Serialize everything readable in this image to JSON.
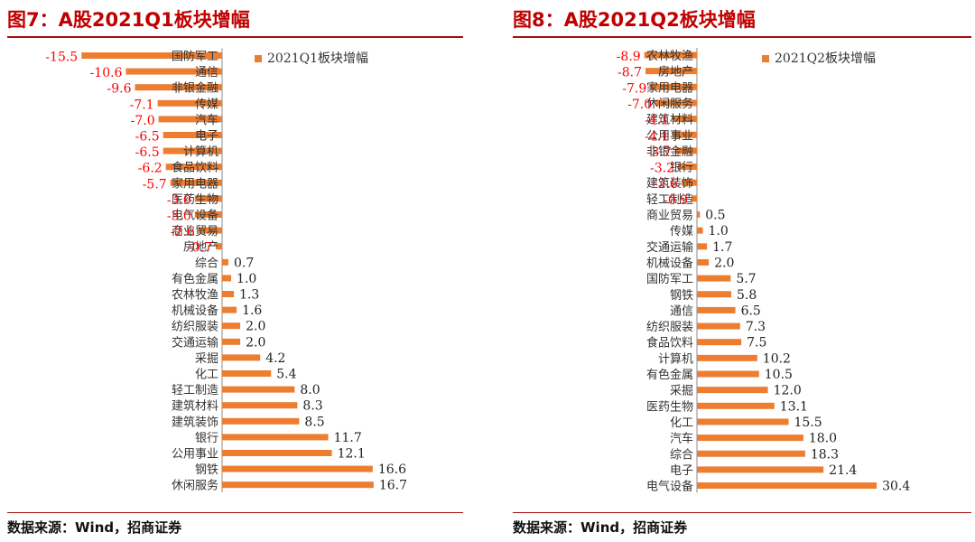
{
  "figures": [
    {
      "title": "图7：A股2021Q1板块增幅",
      "source": "数据来源：Wind，招商证券"
    },
    {
      "title": "图8：A股2021Q2板块增幅",
      "source": "数据来源：Wind，招商证券"
    }
  ],
  "colors": {
    "bar": "#ed7d31",
    "negative_label": "#ff0000",
    "positive_label": "#222222",
    "title": "#c00000",
    "rule": "#a50f0f"
  },
  "chart_data": [
    {
      "type": "bar",
      "orientation": "horizontal",
      "legend": {
        "label": "2021Q1板块增幅",
        "position": "top-right"
      },
      "grid": false,
      "xlim": [
        -16.0,
        17.5
      ],
      "categories": [
        "国防军工",
        "通信",
        "非银金融",
        "传媒",
        "汽车",
        "电子",
        "计算机",
        "食品饮料",
        "家用电器",
        "医药生物",
        "电气设备",
        "商业贸易",
        "房地产",
        "综合",
        "有色金属",
        "农林牧渔",
        "机械设备",
        "纺织服装",
        "交通运输",
        "采掘",
        "化工",
        "轻工制造",
        "建筑材料",
        "建筑装饰",
        "银行",
        "公用事业",
        "钢铁",
        "休闲服务"
      ],
      "series": [
        {
          "name": "2021Q1板块增幅",
          "values": [
            -15.5,
            -10.6,
            -9.6,
            -7.1,
            -7.0,
            -6.5,
            -6.5,
            -6.2,
            -5.7,
            -3.0,
            -3.0,
            -2.6,
            -0.7,
            0.7,
            1.0,
            1.3,
            1.6,
            2.0,
            2.0,
            4.2,
            5.4,
            8.0,
            8.3,
            8.5,
            11.7,
            12.1,
            16.6,
            16.7
          ]
        }
      ],
      "labels": [
        "-15.5",
        "-10.6",
        "-9.6",
        "-7.1",
        "-7.0",
        "-6.5",
        "-6.5",
        "-6.2",
        "-5.7",
        "-3.0",
        "-3.0",
        "-2.6",
        "-0.7",
        "0.7",
        "1.0",
        "1.3",
        "1.6",
        "2.0",
        "2.0",
        "4.2",
        "5.4",
        "8.0",
        "8.3",
        "8.5",
        "11.7",
        "12.1",
        "16.6",
        "16.7"
      ]
    },
    {
      "type": "bar",
      "orientation": "horizontal",
      "legend": {
        "label": "2021Q2板块增幅",
        "position": "top-right"
      },
      "grid": false,
      "xlim": [
        -9.5,
        30.5
      ],
      "categories": [
        "农林牧渔",
        "房地产",
        "家用电器",
        "休闲服务",
        "建筑材料",
        "公用事业",
        "非银金融",
        "银行",
        "建筑装饰",
        "轻工制造",
        "商业贸易",
        "传媒",
        "交通运输",
        "机械设备",
        "国防军工",
        "钢铁",
        "通信",
        "纺织服装",
        "食品饮料",
        "计算机",
        "有色金属",
        "采掘",
        "医药生物",
        "化工",
        "汽车",
        "综合",
        "电子",
        "电气设备"
      ],
      "series": [
        {
          "name": "2021Q2板块增幅",
          "values": [
            -8.9,
            -8.7,
            -7.9,
            -7.0,
            -4.1,
            -4.1,
            -3.7,
            -3.2,
            -2.6,
            -0.9,
            0.5,
            1.0,
            1.7,
            2.0,
            5.7,
            5.8,
            6.5,
            7.3,
            7.5,
            10.2,
            10.5,
            12.0,
            13.1,
            15.5,
            18.0,
            18.3,
            21.4,
            30.4
          ]
        }
      ],
      "labels": [
        "-8.9",
        "-8.7",
        "-7.9",
        "-7.0",
        "-4.1",
        "-4.1",
        "-3.7",
        "-3.2",
        "-2.6",
        "-0.9",
        "0.5",
        "1.0",
        "1.7",
        "2.0",
        "5.7",
        "5.8",
        "6.5",
        "7.3",
        "7.5",
        "10.2",
        "10.5",
        "12.0",
        "13.1",
        "15.5",
        "18.0",
        "18.3",
        "21.4",
        "30.4"
      ]
    }
  ]
}
